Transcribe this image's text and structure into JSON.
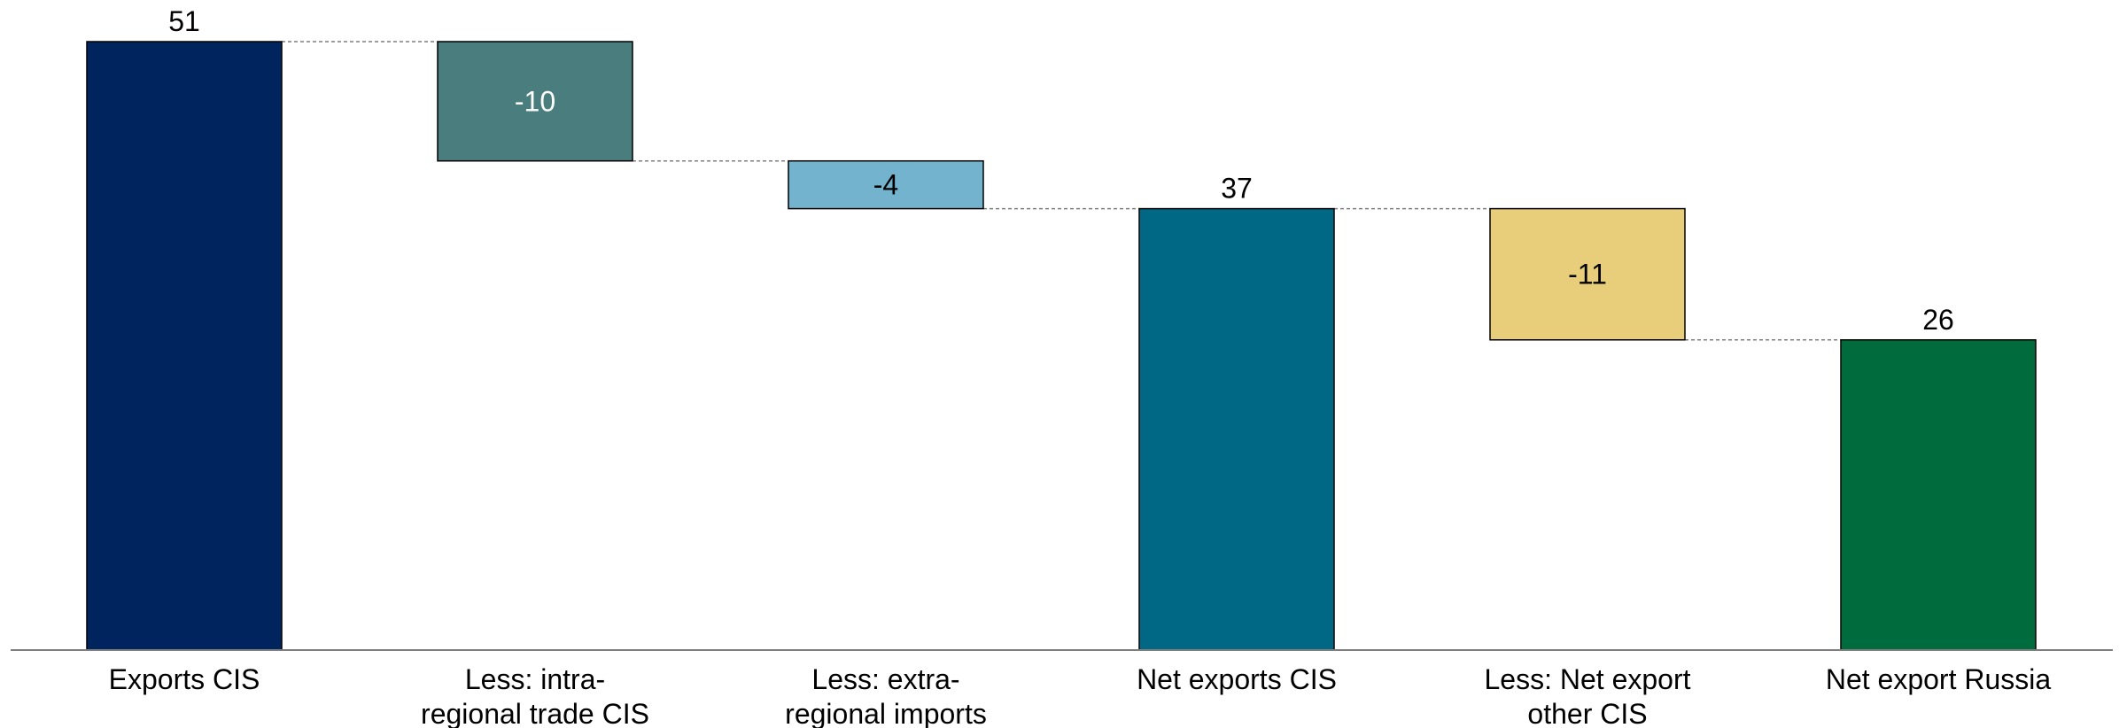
{
  "chart_data": {
    "type": "waterfall",
    "categories": [
      [
        "Exports CIS"
      ],
      [
        "Less: intra-",
        "regional trade CIS"
      ],
      [
        "Less: extra-",
        "regional imports"
      ],
      [
        "Net exports CIS"
      ],
      [
        "Less: Net export",
        "other CIS"
      ],
      [
        "Net export Russia"
      ]
    ],
    "steps": [
      {
        "kind": "total",
        "value": 51,
        "label": "51",
        "color": "#00245D"
      },
      {
        "kind": "delta",
        "value": -10,
        "label": "-10",
        "color": "#4A7D7D"
      },
      {
        "kind": "delta",
        "value": -4,
        "label": "-4",
        "color": "#74B3CE"
      },
      {
        "kind": "total",
        "value": 37,
        "label": "37",
        "color": "#006884"
      },
      {
        "kind": "delta",
        "value": -11,
        "label": "-11",
        "color": "#E8CE7A"
      },
      {
        "kind": "total",
        "value": 26,
        "label": "26",
        "color": "#006B3C"
      }
    ],
    "ylim": [
      0,
      51
    ],
    "grid": false,
    "connectors": true
  }
}
